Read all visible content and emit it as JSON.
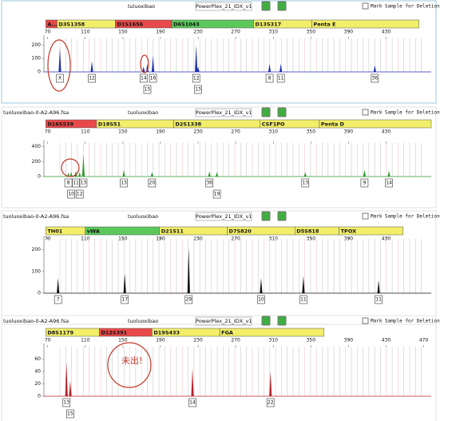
{
  "chart_data": [
    {
      "type": "peak",
      "user": "tuluoxibao",
      "kit": "PowerPlex_21_IDX_v1",
      "checkbox": "Mark Sample for Deletion",
      "loci": [
        {
          "name": "A...",
          "color": "#e84a4a",
          "range": [
            68,
            80
          ]
        },
        {
          "name": "D3S1358",
          "color": "#f2ee6a",
          "range": [
            80,
            142
          ]
        },
        {
          "name": "D1S1656",
          "color": "#e84a4a",
          "range": [
            142,
            202
          ]
        },
        {
          "name": "D6S1043",
          "color": "#5cc85c",
          "range": [
            202,
            289
          ]
        },
        {
          "name": "D13S317",
          "color": "#f2ee6a",
          "range": [
            289,
            351
          ]
        },
        {
          "name": "Penta E",
          "color": "#f2ee6a",
          "range": [
            351,
            465
          ]
        }
      ],
      "trace_color": "#1f2fb0",
      "xlim": [
        66,
        478
      ],
      "xticks": [
        70,
        110,
        150,
        190,
        230,
        270,
        310,
        350,
        390,
        430
      ],
      "ylim": [
        0,
        250
      ],
      "yticks": [
        0,
        100,
        200
      ],
      "x": [
        83,
        117,
        172,
        176,
        182,
        228,
        230,
        306,
        318,
        418
      ],
      "values": [
        180,
        80,
        40,
        60,
        120,
        200,
        40,
        60,
        60,
        50
      ],
      "labels": [
        "X",
        "12",
        "14",
        "15",
        "16",
        "12",
        "13",
        "8",
        "11",
        "36"
      ]
    },
    {
      "type": "peak",
      "sample": "tuoluoxibao-0-A2-A96.fsa",
      "user": "tuoluoxibao",
      "kit": "PowerPlex_21_IDX_v1",
      "checkbox": "Mark Sample for Deletion",
      "loci": [
        {
          "name": "D16S539",
          "color": "#e84a4a",
          "range": [
            68,
            122
          ]
        },
        {
          "name": "D18S51",
          "color": "#f2ee6a",
          "range": [
            122,
            204
          ]
        },
        {
          "name": "D2S1338",
          "color": "#f2ee6a",
          "range": [
            204,
            296
          ]
        },
        {
          "name": "CSF1PO",
          "color": "#f2ee6a",
          "range": [
            296,
            359
          ]
        },
        {
          "name": "Penta D",
          "color": "#f2ee6a",
          "range": [
            359,
            478
          ]
        }
      ],
      "trace_color": "#2e9a2e",
      "xlim": [
        66,
        478
      ],
      "xticks": [
        70,
        110,
        150,
        190,
        230,
        270,
        310,
        350,
        390,
        430
      ],
      "ylim": [
        0,
        450
      ],
      "yticks": [
        0,
        200,
        400
      ],
      "x": [
        92,
        95,
        100,
        104,
        108,
        151,
        181,
        242,
        250,
        344,
        407,
        433
      ],
      "values": [
        50,
        60,
        80,
        60,
        300,
        90,
        60,
        70,
        60,
        60,
        90,
        80
      ],
      "labels": [
        "8",
        "10",
        "11",
        "12",
        "13",
        "13",
        "20",
        "36",
        "19",
        "13",
        "9",
        "14"
      ]
    },
    {
      "type": "peak",
      "sample": "tuoluoxibao-0-A2-A96.fsa",
      "user": "tuoluoxibao",
      "kit": "PowerPlex_21_IDX_v1",
      "checkbox": "Mark Sample for Deletion",
      "loci": [
        {
          "name": "TH01",
          "color": "#f2ee6a",
          "range": [
            68,
            110
          ]
        },
        {
          "name": "vWA",
          "color": "#5cc85c",
          "range": [
            110,
            189
          ]
        },
        {
          "name": "D21S11",
          "color": "#f2ee6a",
          "range": [
            189,
            261
          ]
        },
        {
          "name": "D7S820",
          "color": "#f2ee6a",
          "range": [
            261,
            333
          ]
        },
        {
          "name": "D5S818",
          "color": "#f2ee6a",
          "range": [
            333,
            380
          ]
        },
        {
          "name": "TPOX",
          "color": "#f2ee6a",
          "range": [
            380,
            448
          ]
        }
      ],
      "trace_color": "#111111",
      "xlim": [
        66,
        478
      ],
      "xticks": [
        70,
        110,
        150,
        190,
        230,
        270,
        310,
        350,
        390,
        430
      ],
      "ylim": [
        0,
        250
      ],
      "yticks": [
        0,
        100,
        200
      ],
      "x": [
        81,
        152,
        220,
        297,
        342,
        422
      ],
      "values": [
        70,
        90,
        210,
        70,
        80,
        60
      ],
      "labels": [
        "7",
        "17",
        "29",
        "10",
        "11",
        "11"
      ]
    },
    {
      "type": "peak",
      "sample": "tuoluoxibao-0-A2-A96.fsa",
      "user": "tuoluoxibao",
      "kit": "PowerPlex_21_IDX_v1",
      "checkbox": "Mark Sample for Deletion",
      "loci": [
        {
          "name": "D8S1179",
          "color": "#f2ee6a",
          "range": [
            68,
            125
          ]
        },
        {
          "name": "D12S391",
          "color": "#e84a4a",
          "range": [
            125,
            181
          ]
        },
        {
          "name": "D19S433",
          "color": "#f2ee6a",
          "range": [
            181,
            253
          ]
        },
        {
          "name": "FGA",
          "color": "#f2ee6a",
          "range": [
            253,
            364
          ]
        }
      ],
      "trace_color": "#b8222a",
      "xlim": [
        66,
        478
      ],
      "xticks": [
        70,
        110,
        150,
        190,
        230,
        270,
        310,
        350,
        390,
        430,
        470
      ],
      "ylim": [
        0,
        80
      ],
      "yticks": [
        0,
        20,
        40,
        60
      ],
      "x": [
        90,
        94,
        224,
        307
      ],
      "values": [
        55,
        25,
        45,
        40
      ],
      "labels": [
        "13",
        "15",
        "14",
        "22"
      ],
      "annotation": "未出!"
    }
  ]
}
